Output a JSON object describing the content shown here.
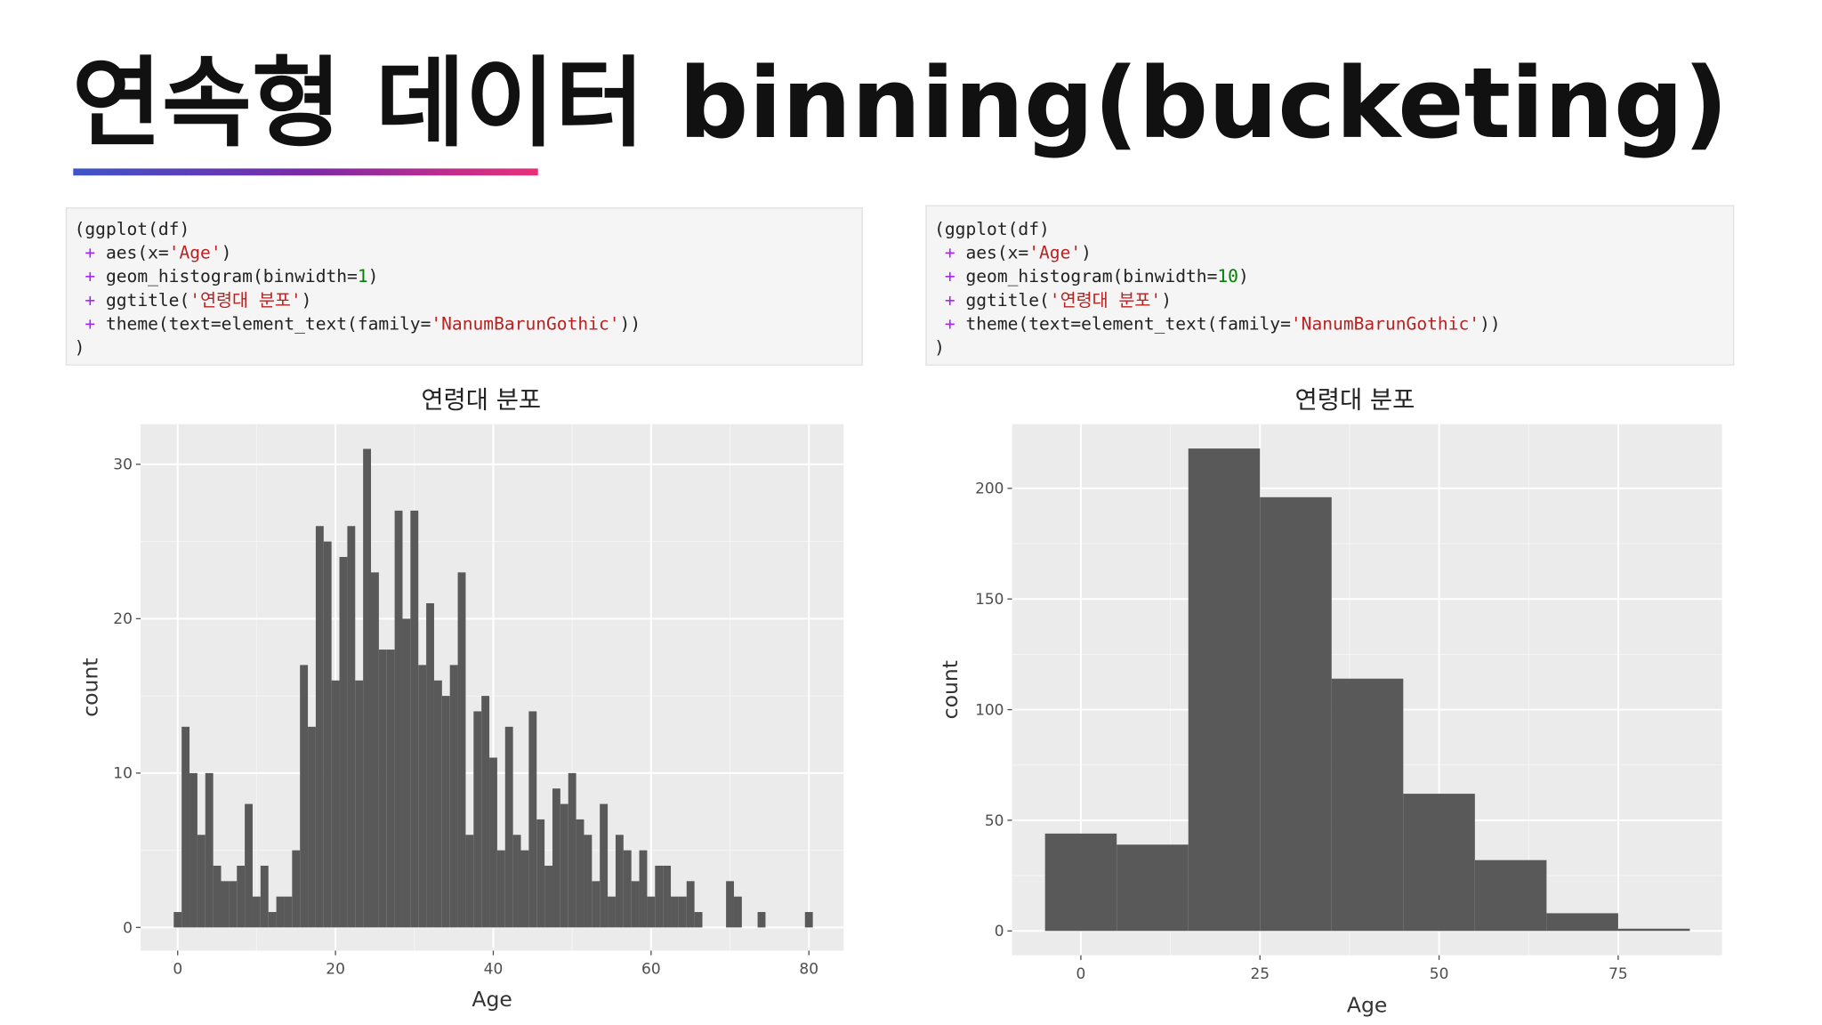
{
  "header": {
    "title": "연속형 데이터 binning(bucketing)"
  },
  "code": [
    {
      "lines": [
        [
          {
            "text": "(ggplot(df)"
          }
        ],
        [
          {
            "text": " + ",
            "color": "#aa22ff"
          },
          {
            "text": "aes(x="
          },
          {
            "text": "'Age'",
            "color": "#ba2121"
          },
          {
            "text": ")"
          }
        ],
        [
          {
            "text": " + ",
            "color": "#aa22ff"
          },
          {
            "text": "geom_histogram(binwidth="
          },
          {
            "text": "1",
            "color": "#008000"
          },
          {
            "text": ")"
          }
        ],
        [
          {
            "text": " + ",
            "color": "#aa22ff"
          },
          {
            "text": "ggtitle("
          },
          {
            "text": "'연령대 분포'",
            "color": "#ba2121"
          },
          {
            "text": ")"
          }
        ],
        [
          {
            "text": " + ",
            "color": "#aa22ff"
          },
          {
            "text": "theme(text=element_text(family="
          },
          {
            "text": "'NanumBarunGothic'",
            "color": "#ba2121"
          },
          {
            "text": "))"
          }
        ],
        [
          {
            "text": ")"
          }
        ]
      ]
    },
    {
      "lines": [
        [
          {
            "text": "(ggplot(df)"
          }
        ],
        [
          {
            "text": " + ",
            "color": "#aa22ff"
          },
          {
            "text": "aes(x="
          },
          {
            "text": "'Age'",
            "color": "#ba2121"
          },
          {
            "text": ")"
          }
        ],
        [
          {
            "text": " + ",
            "color": "#aa22ff"
          },
          {
            "text": "geom_histogram(binwidth="
          },
          {
            "text": "10",
            "color": "#008000"
          },
          {
            "text": ")"
          }
        ],
        [
          {
            "text": " + ",
            "color": "#aa22ff"
          },
          {
            "text": "ggtitle("
          },
          {
            "text": "'연령대 분포'",
            "color": "#ba2121"
          },
          {
            "text": ")"
          }
        ],
        [
          {
            "text": " + ",
            "color": "#aa22ff"
          },
          {
            "text": "theme(text=element_text(family="
          },
          {
            "text": "'NanumBarunGothic'",
            "color": "#ba2121"
          },
          {
            "text": "))"
          }
        ],
        [
          {
            "text": ")"
          }
        ]
      ]
    }
  ],
  "chart_data": [
    {
      "type": "histogram",
      "title": "연령대 분포",
      "x_label": "Age",
      "y_label": "count",
      "color": "#595959",
      "bins": [
        -0.5,
        0.5,
        1.5,
        2.5,
        3.5,
        4.5,
        5.5,
        6.5,
        7.5,
        8.5,
        9.5,
        10.5,
        11.5,
        12.5,
        13.5,
        14.5,
        15.5,
        16.5,
        17.5,
        18.5,
        19.5,
        20.5,
        21.5,
        22.5,
        23.5,
        24.5,
        25.5,
        26.5,
        27.5,
        28.5,
        29.5,
        30.5,
        31.5,
        32.5,
        33.5,
        34.5,
        35.5,
        36.5,
        37.5,
        38.5,
        39.5,
        40.5,
        41.5,
        42.5,
        43.5,
        44.5,
        45.5,
        46.5,
        47.5,
        48.5,
        49.5,
        50.5,
        51.5,
        52.5,
        53.5,
        54.5,
        55.5,
        56.5,
        57.5,
        58.5,
        59.5,
        60.5,
        61.5,
        62.5,
        63.5,
        64.5,
        65.5,
        66.5,
        67.5,
        68.5,
        69.5,
        70.5,
        71.5,
        72.5,
        73.5,
        74.5,
        75.5,
        76.5,
        77.5,
        78.5,
        79.5,
        80.5
      ],
      "values": [
        1,
        13,
        10,
        6,
        10,
        4,
        3,
        3,
        4,
        8,
        2,
        4,
        1,
        2,
        2,
        5,
        17,
        13,
        26,
        25,
        16,
        24,
        26,
        16,
        31,
        23,
        18,
        18,
        27,
        20,
        27,
        17,
        21,
        16,
        15,
        17,
        23,
        6,
        14,
        15,
        11,
        5,
        13,
        6,
        5,
        14,
        7,
        4,
        9,
        8,
        10,
        7,
        6,
        3,
        8,
        2,
        6,
        5,
        3,
        5,
        2,
        4,
        4,
        2,
        2,
        3,
        1,
        0,
        0,
        0,
        3,
        2,
        0,
        0,
        1,
        0,
        0,
        0,
        0,
        0,
        1
      ],
      "xlim": [
        -4.7,
        84.4
      ],
      "ylim": [
        -1.5,
        32.6
      ],
      "xticks": [
        0,
        20,
        40,
        60,
        80
      ],
      "yticks": [
        0,
        10,
        20,
        30
      ],
      "grid": true
    },
    {
      "type": "histogram",
      "title": "연령대 분포",
      "x_label": "Age",
      "y_label": "count",
      "color": "#595959",
      "bins": [
        -5,
        5,
        15,
        25,
        35,
        45,
        55,
        65,
        75,
        85
      ],
      "values": [
        44,
        39,
        218,
        196,
        114,
        62,
        32,
        8,
        1
      ],
      "xlim": [
        -9.6,
        89.5
      ],
      "ylim": [
        -11,
        229
      ],
      "xticks": [
        0,
        25,
        50,
        75
      ],
      "yticks": [
        0,
        50,
        100,
        150,
        200
      ],
      "grid": true
    }
  ]
}
